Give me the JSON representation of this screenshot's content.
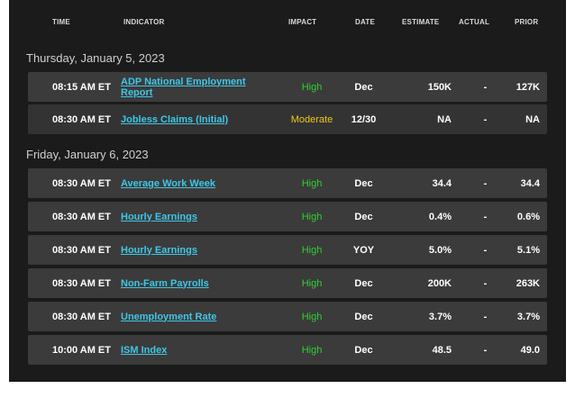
{
  "colors": {
    "panel_bg": "#1b1b1b",
    "row_bg": "#3b3b3b",
    "link": "#3fc7e6",
    "high": "#2fcf2f",
    "moderate": "#f0c419"
  },
  "header": {
    "time": "TIME",
    "indicator": "INDICATOR",
    "impact": "IMPACT",
    "date": "DATE",
    "estimate": "ESTIMATE",
    "actual": "ACTUAL",
    "prior": "PRIOR"
  },
  "groups": [
    {
      "day": "Thursday, January 5, 2023",
      "rows": [
        {
          "time": "08:15 AM ET",
          "indicator": "ADP National Employment Report",
          "impact": "High",
          "date": "Dec",
          "estimate": "150K",
          "actual": "-",
          "prior": "127K"
        },
        {
          "time": "08:30 AM ET",
          "indicator": "Jobless Claims (Initial)",
          "impact": "Moderate",
          "date": "12/30",
          "estimate": "NA",
          "actual": "-",
          "prior": "NA"
        }
      ]
    },
    {
      "day": "Friday, January 6, 2023",
      "rows": [
        {
          "time": "08:30 AM ET",
          "indicator": "Average Work Week",
          "impact": "High",
          "date": "Dec",
          "estimate": "34.4",
          "actual": "-",
          "prior": "34.4"
        },
        {
          "time": "08:30 AM ET",
          "indicator": "Hourly Earnings",
          "impact": "High",
          "date": "Dec",
          "estimate": "0.4%",
          "actual": "-",
          "prior": "0.6%"
        },
        {
          "time": "08:30 AM ET",
          "indicator": "Hourly Earnings",
          "impact": "High",
          "date": "YOY",
          "estimate": "5.0%",
          "actual": "-",
          "prior": "5.1%"
        },
        {
          "time": "08:30 AM ET",
          "indicator": "Non-Farm Payrolls",
          "impact": "High",
          "date": "Dec",
          "estimate": "200K",
          "actual": "-",
          "prior": "263K"
        },
        {
          "time": "08:30 AM ET",
          "indicator": "Unemployment Rate",
          "impact": "High",
          "date": "Dec",
          "estimate": "3.7%",
          "actual": "-",
          "prior": "3.7%"
        },
        {
          "time": "10:00 AM ET",
          "indicator": "ISM Index",
          "impact": "High",
          "date": "Dec",
          "estimate": "48.5",
          "actual": "-",
          "prior": "49.0"
        }
      ]
    }
  ]
}
